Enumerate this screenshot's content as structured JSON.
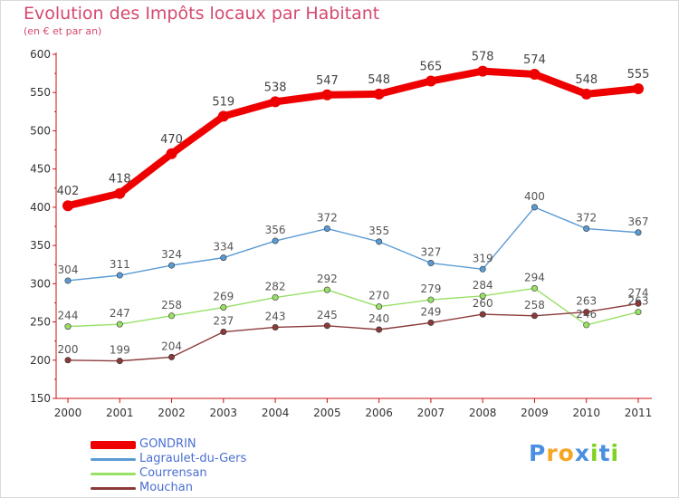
{
  "title": "Evolution des Impôts locaux par Habitant",
  "subtitle": "(en € et par an)",
  "logo": "Proxiti",
  "colors": {
    "title": "#d6496e",
    "axis": "#cc1111",
    "tick_label": "#333333",
    "legend_text": "#4a6fd1"
  },
  "chart_data": {
    "type": "line",
    "x": [
      "2000",
      "2001",
      "2002",
      "2003",
      "2004",
      "2005",
      "2006",
      "2007",
      "2008",
      "2009",
      "2010",
      "2011"
    ],
    "ylim": [
      150,
      600
    ],
    "yticks": [
      150,
      200,
      250,
      300,
      350,
      400,
      450,
      500,
      550,
      600
    ],
    "legend_position": "bottom-left",
    "series": [
      {
        "name": "GONDRIN",
        "color": "#ee0000",
        "values": [
          402,
          418,
          470,
          519,
          538,
          547,
          548,
          565,
          578,
          574,
          548,
          555
        ]
      },
      {
        "name": "Lagraulet-du-Gers",
        "color": "#5b9bd5",
        "values": [
          304,
          311,
          324,
          334,
          356,
          372,
          355,
          327,
          319,
          400,
          372,
          367
        ]
      },
      {
        "name": "Courrensan",
        "color": "#99e066",
        "values": [
          244,
          247,
          258,
          269,
          282,
          292,
          270,
          279,
          284,
          294,
          246,
          263
        ]
      },
      {
        "name": "Mouchan",
        "color": "#8b3a3a",
        "values": [
          200,
          199,
          204,
          237,
          243,
          245,
          240,
          249,
          260,
          258,
          263,
          274
        ]
      }
    ]
  }
}
